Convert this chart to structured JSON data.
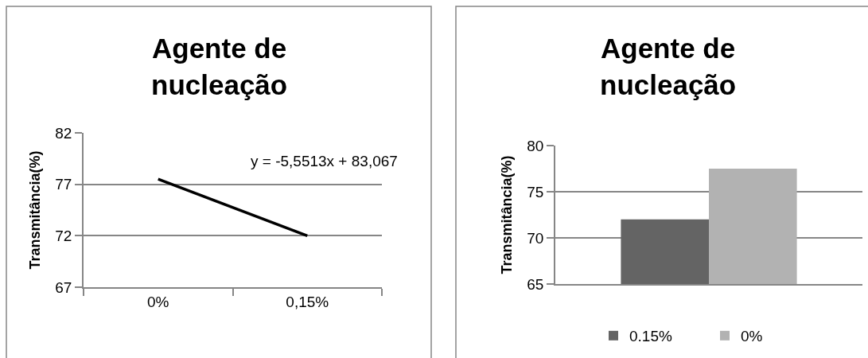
{
  "chart_data": [
    {
      "type": "line",
      "title": "Agente de nucleação",
      "ylabel": "Transmitância(%)",
      "categories": [
        "0%",
        "0,15%"
      ],
      "series": [
        {
          "color": "#000000",
          "values": [
            77.5,
            72.0
          ]
        }
      ],
      "ylim": [
        67,
        82
      ],
      "yticks": [
        67,
        72,
        77,
        82
      ],
      "grid": "y",
      "legend": false,
      "marker": "none",
      "annotations": [
        "y = -5,5513x + 83,067"
      ]
    },
    {
      "type": "bar",
      "title": "Agente de nucleação",
      "ylabel": "Transmitância(%)",
      "categories": [
        null
      ],
      "series": [
        {
          "name": "0.15%",
          "color": "#646464",
          "values": [
            72.0
          ]
        },
        {
          "name": "0%",
          "color": "#b2b2b2",
          "values": [
            77.5
          ]
        }
      ],
      "ylim": [
        65,
        80
      ],
      "yticks": [
        65,
        70,
        75,
        80
      ],
      "grid": "y",
      "legend": "bottom"
    }
  ]
}
